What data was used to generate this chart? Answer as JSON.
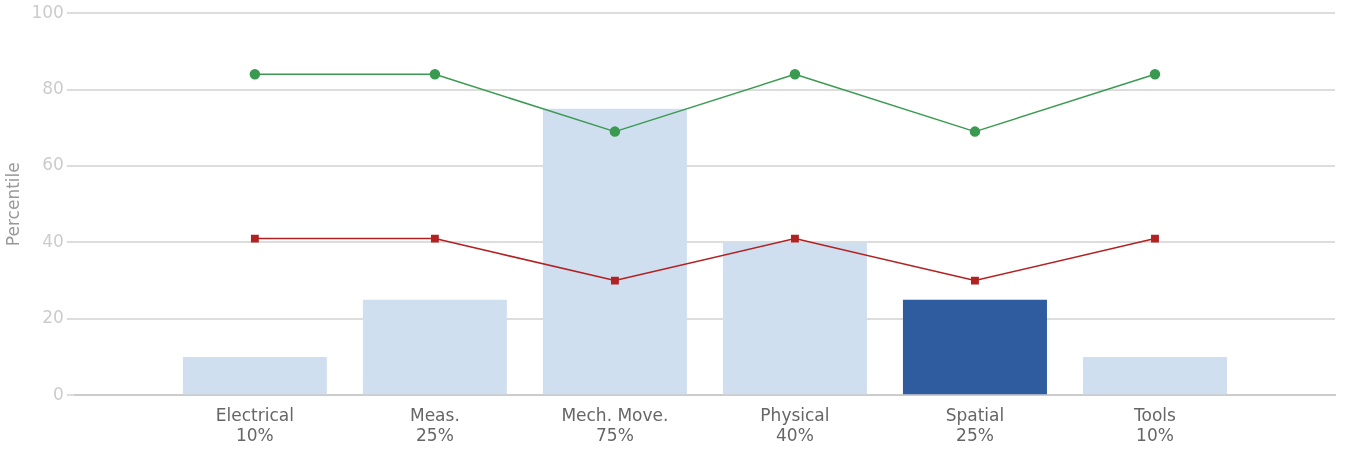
{
  "chart_data": {
    "type": "bar",
    "ylabel": "Percentile",
    "categories": [
      null,
      "Electrical",
      "Meas.",
      "Mech. Move.",
      "Physical",
      "Spatial",
      "Tools",
      null
    ],
    "series": [
      {
        "colors": [
          "#d0dff0",
          "#d0dff0",
          "#d0dff0",
          "#d0dff0",
          "#d0dff0",
          "#2e5c9e",
          "#d0dff0",
          "#d0dff0"
        ],
        "values": [
          null,
          10,
          25,
          75,
          40,
          25,
          10,
          null
        ],
        "value_labels": [
          null,
          "10%",
          "25%",
          "75%",
          "40%",
          "25%",
          "10%",
          null
        ]
      },
      {
        "type": "line",
        "color": "#3a9a50",
        "marker": "circle",
        "values": [
          null,
          84,
          84,
          69,
          84,
          69,
          84,
          null
        ]
      },
      {
        "type": "line",
        "color": "#b22222",
        "marker": "square",
        "values": [
          null,
          41,
          41,
          30,
          41,
          30,
          41,
          null
        ]
      }
    ],
    "ylim": [
      0,
      100
    ],
    "yticks": [
      0,
      20,
      40,
      60,
      80,
      100
    ],
    "grid": "y",
    "legend": false
  }
}
